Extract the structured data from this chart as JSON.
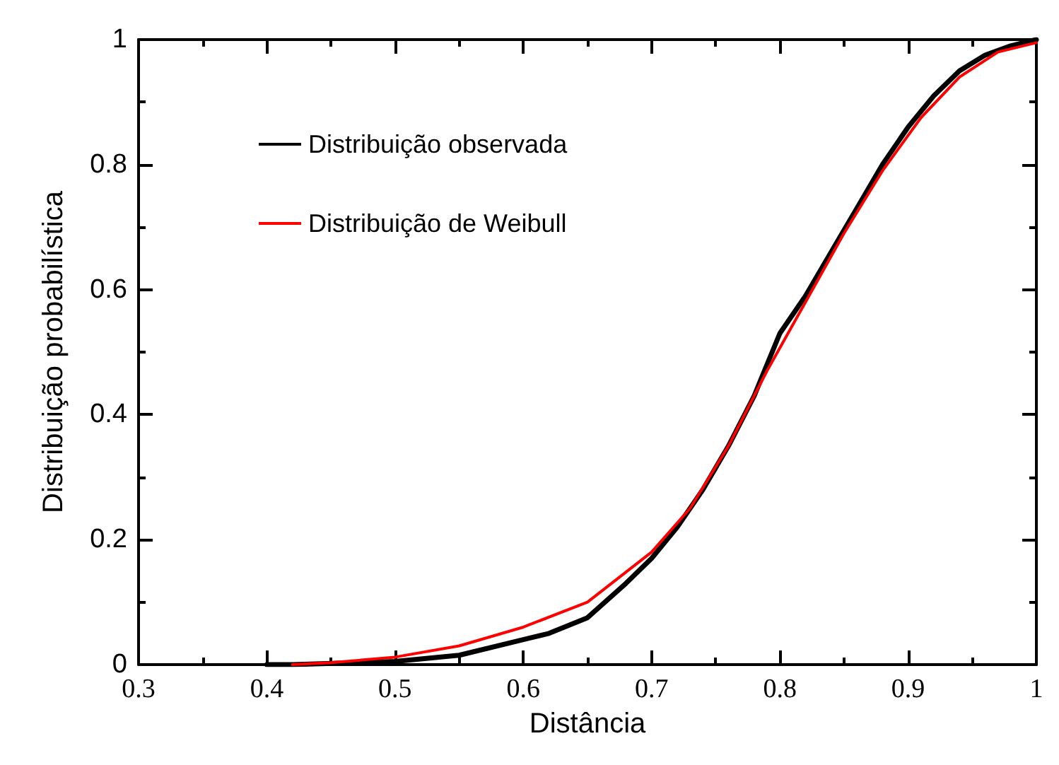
{
  "chart_data": {
    "type": "line",
    "xlabel": "Distância",
    "ylabel": "Distribuição probabilística",
    "xlim": [
      0.3,
      1
    ],
    "ylim": [
      0,
      1
    ],
    "xticks": [
      0.3,
      0.4,
      0.5,
      0.6,
      0.7,
      0.8,
      0.9,
      1
    ],
    "yticks": [
      0,
      0.2,
      0.4,
      0.6,
      0.8,
      1
    ],
    "grid": false,
    "legend": "top left",
    "marker": "none",
    "line_style": "solid",
    "series": [
      {
        "name": "Distribuição observada",
        "color": "#000000",
        "x": [
          0.4,
          0.42,
          0.5,
          0.55,
          0.6,
          0.62,
          0.65,
          0.68,
          0.7,
          0.72,
          0.74,
          0.76,
          0.78,
          0.79,
          0.8,
          0.81,
          0.82,
          0.84,
          0.86,
          0.88,
          0.9,
          0.92,
          0.94,
          0.96,
          0.98,
          1.0
        ],
        "values": [
          0,
          0,
          0.005,
          0.015,
          0.04,
          0.05,
          0.075,
          0.13,
          0.17,
          0.22,
          0.28,
          0.35,
          0.43,
          0.48,
          0.53,
          0.56,
          0.59,
          0.66,
          0.73,
          0.8,
          0.86,
          0.91,
          0.95,
          0.975,
          0.99,
          1.0
        ]
      },
      {
        "name": "Distribuição de Weibull",
        "color": "#ff0000",
        "x": [
          0.42,
          0.45,
          0.5,
          0.55,
          0.6,
          0.65,
          0.7,
          0.73,
          0.76,
          0.79,
          0.82,
          0.85,
          0.88,
          0.91,
          0.94,
          0.97,
          1.0
        ],
        "values": [
          0,
          0.003,
          0.012,
          0.03,
          0.06,
          0.1,
          0.18,
          0.25,
          0.35,
          0.47,
          0.58,
          0.69,
          0.79,
          0.875,
          0.94,
          0.98,
          0.995
        ]
      }
    ]
  }
}
